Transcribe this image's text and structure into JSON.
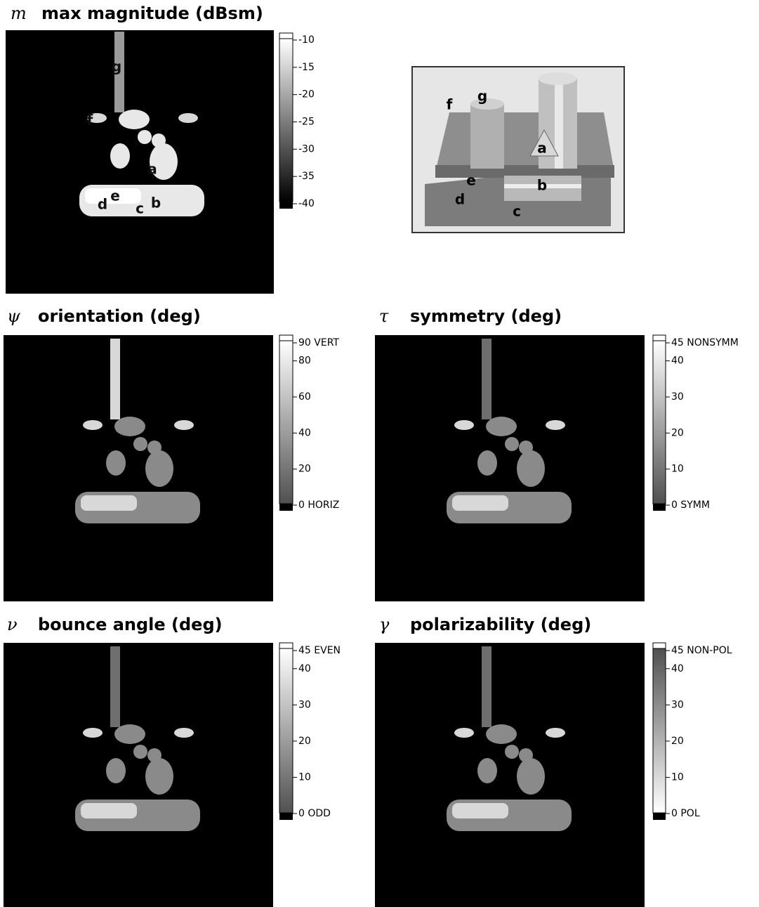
{
  "panels": [
    {
      "symbol": "m",
      "title": "max magnitude (dBsm)",
      "colorbar_colors": [
        "#ffffff",
        "#000000"
      ],
      "ticks": [
        -10,
        -15,
        -20,
        -25,
        -30,
        -35,
        -40
      ],
      "labels": [
        "g",
        "f",
        "a",
        "d",
        "e",
        "c",
        "b"
      ]
    },
    {
      "symbol": "ψ",
      "title": "orientation (deg)",
      "colorbar_colors": [
        "#ffffff",
        "#505050"
      ],
      "ticks": [
        {
          "value": 90,
          "label": "90 VERT"
        },
        80,
        60,
        40,
        20,
        {
          "value": 0,
          "label": "0 HORIZ"
        }
      ]
    },
    {
      "symbol": "τ",
      "title": "symmetry (deg)",
      "colorbar_colors": [
        "#ffffff",
        "#505050"
      ],
      "ticks": [
        {
          "value": 45,
          "label": "45 NONSYMM"
        },
        40,
        30,
        20,
        10,
        {
          "value": 0,
          "label": "0 SYMM"
        }
      ]
    },
    {
      "symbol": "ν",
      "title": "bounce angle (deg)",
      "colorbar_colors": [
        "#ffffff",
        "#505050"
      ],
      "ticks": [
        {
          "value": 45,
          "label": "45 EVEN"
        },
        40,
        30,
        20,
        10,
        {
          "value": 0,
          "label": "0 ODD"
        }
      ]
    },
    {
      "symbol": "γ",
      "title": "polarizability (deg)",
      "colorbar_colors": [
        "#505050",
        "#ffffff"
      ],
      "ticks": [
        {
          "value": 45,
          "label": "45 NON-POL"
        },
        40,
        30,
        20,
        10,
        {
          "value": 0,
          "label": "0 POL"
        }
      ]
    }
  ],
  "photo": {
    "labels": [
      "f",
      "g",
      "a",
      "e",
      "b",
      "d",
      "c"
    ]
  }
}
